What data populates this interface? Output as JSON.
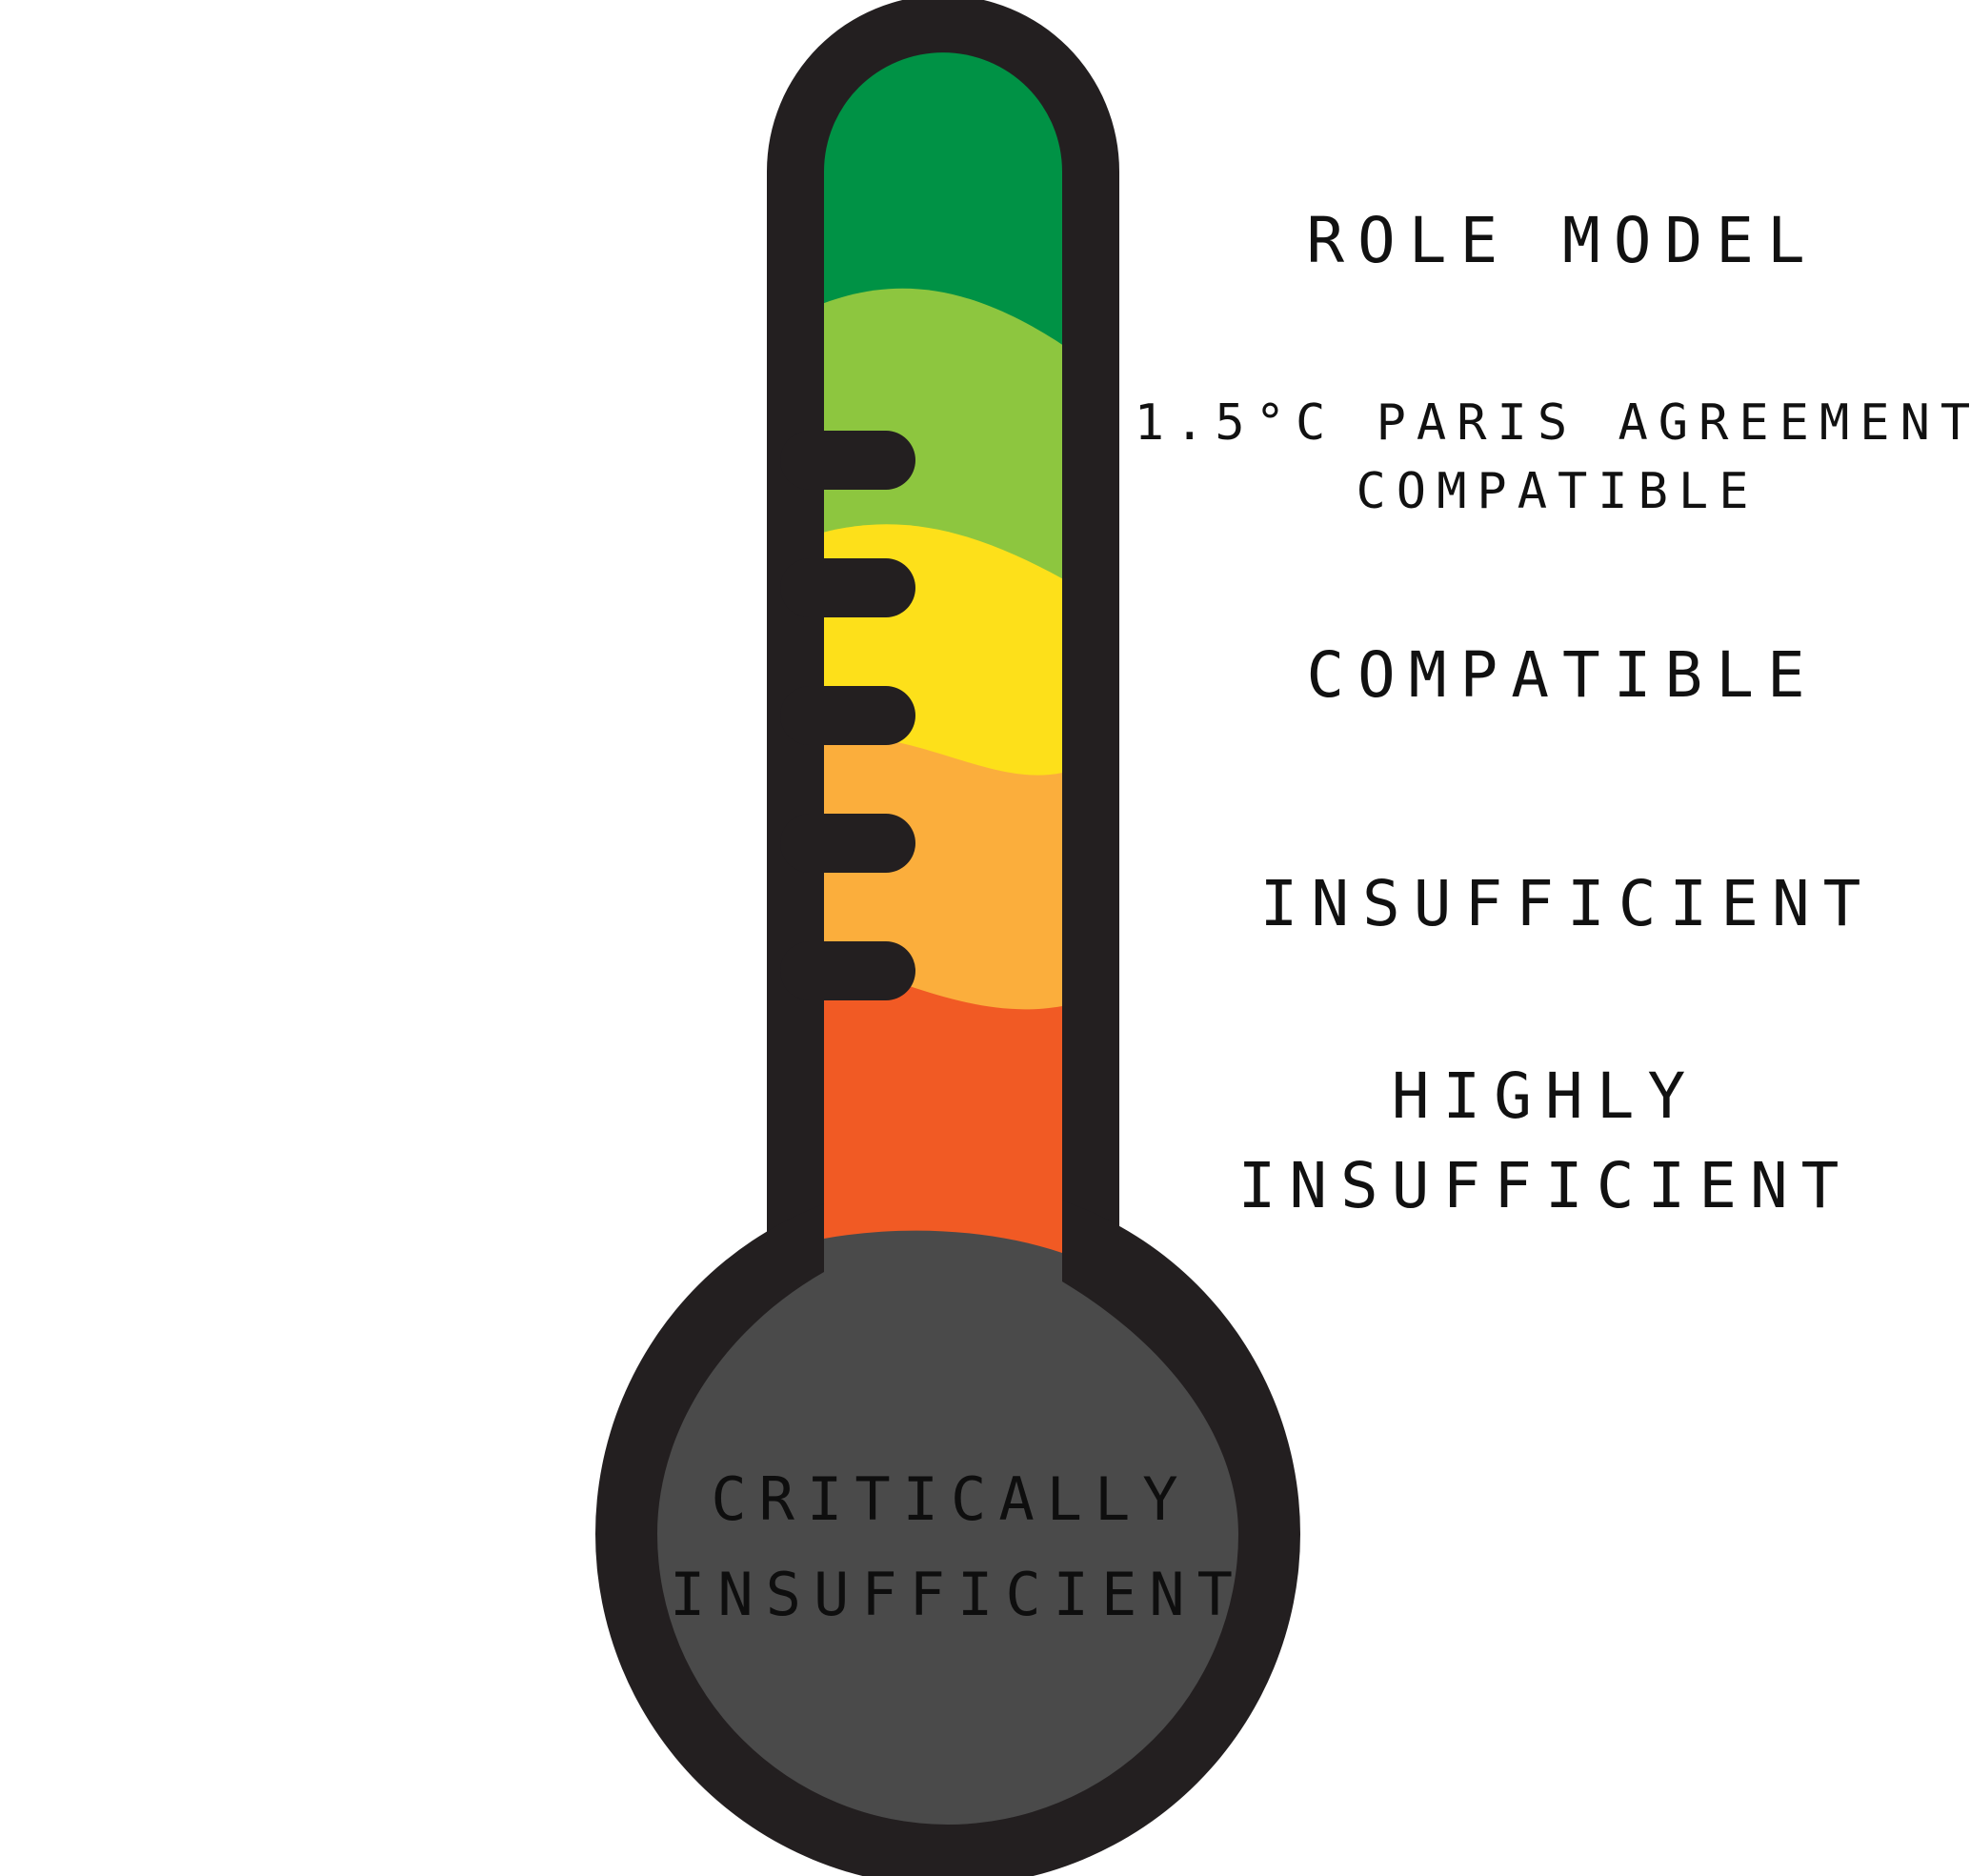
{
  "colors": {
    "outline": "#231f20",
    "bulb": "#4a4a4a",
    "role_model": "#009245",
    "paris_compatible": "#8dc63f",
    "compatible": "#fde01a",
    "insufficient": "#fbae3c",
    "highly_insufficient": "#f15a24"
  },
  "labels": {
    "role_model": "ROLE MODEL",
    "paris_line1": "1.5°C  PARIS AGREEMENT",
    "paris_line2": "COMPATIBLE",
    "compatible": "COMPATIBLE",
    "insufficient": "INSUFFICIENT",
    "highly_line1": "HIGHLY",
    "highly_line2": "INSUFFICIENT",
    "critically_line1": "CRITICALLY",
    "critically_line2": "INSUFFICIENT"
  }
}
